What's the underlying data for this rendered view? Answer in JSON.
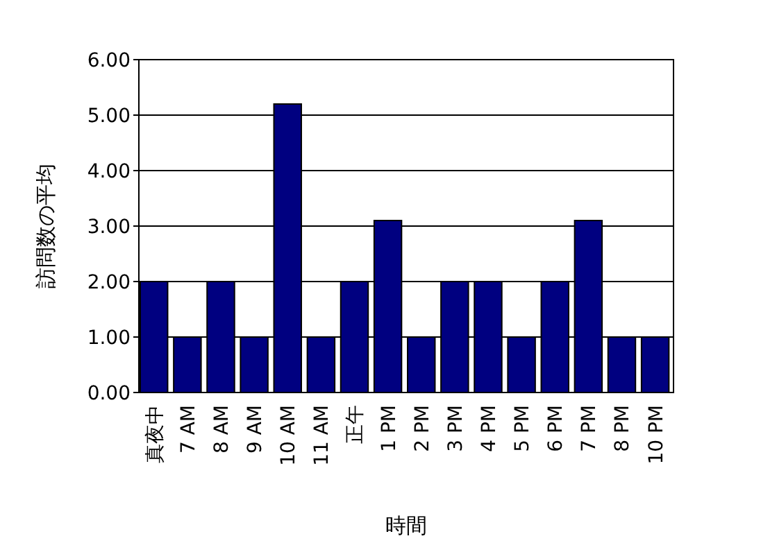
{
  "chart_data": {
    "type": "bar",
    "xlabel": "時間",
    "ylabel": "訪問数の平均",
    "categories": [
      "真夜中",
      "7 AM",
      "8 AM",
      "9 AM",
      "10 AM",
      "11 AM",
      "正午",
      "1 PM",
      "2 PM",
      "3 PM",
      "4 PM",
      "5 PM",
      "6 PM",
      "7 PM",
      "8 PM",
      "10 PM"
    ],
    "values": [
      2,
      1,
      2,
      1,
      5.2,
      1,
      2,
      3.1,
      1,
      2,
      2,
      1,
      2,
      3.1,
      1,
      1
    ],
    "color": "#000080",
    "ylim": [
      0,
      6
    ],
    "yticks": [
      {
        "value": 0,
        "label": "0.00"
      },
      {
        "value": 1,
        "label": "1.00"
      },
      {
        "value": 2,
        "label": "2.00"
      },
      {
        "value": 3,
        "label": "3.00"
      },
      {
        "value": 4,
        "label": "4.00"
      },
      {
        "value": 5,
        "label": "5.00"
      },
      {
        "value": 6,
        "label": "6.00"
      }
    ],
    "grid": "y"
  }
}
